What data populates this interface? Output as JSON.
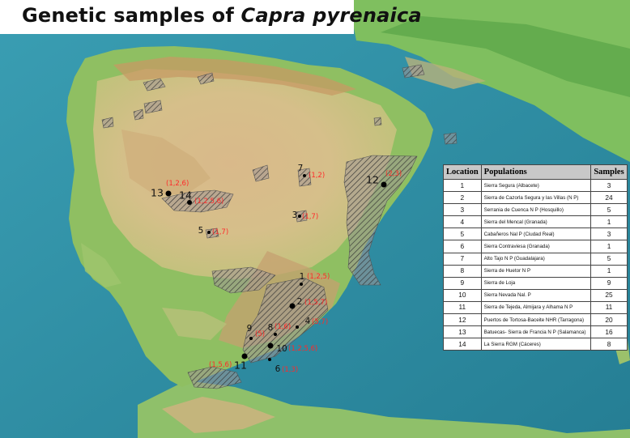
{
  "title": {
    "text": "Genetic samples of ",
    "species": "Capra pyrenaica"
  },
  "colors": {
    "sea": "#2f8fa3",
    "label_red": "#ff2a2a",
    "table_header": "#c8c8c8",
    "hatch": "#3a3a3a"
  },
  "locations": [
    {
      "num": "1",
      "pops": "(1,2,5)"
    },
    {
      "num": "2",
      "pops": "(1,5,7)"
    },
    {
      "num": "3",
      "pops": "(1,7)"
    },
    {
      "num": "4",
      "pops": "(5,7)"
    },
    {
      "num": "5",
      "pops": "(1,7)"
    },
    {
      "num": "6",
      "pops": "(1,3)"
    },
    {
      "num": "7",
      "pops": "(1,2)"
    },
    {
      "num": "8",
      "pops": "(1,6)"
    },
    {
      "num": "9",
      "pops": "(5)"
    },
    {
      "num": "10",
      "pops": "(1,2,5,6)"
    },
    {
      "num": "11",
      "pops": "(1,5,6)"
    },
    {
      "num": "12",
      "pops": "(2,3)"
    },
    {
      "num": "13",
      "pops": "(1,2,6)"
    },
    {
      "num": "14",
      "pops": "(1,2,5,6)"
    }
  ],
  "table": {
    "headers": [
      "Location",
      "Populations",
      "Samples"
    ],
    "rows": [
      [
        "1",
        "Sierra Segura (Albacete)",
        "3"
      ],
      [
        "2",
        "Sierra de Cazorla Segura y las Villas (N P)",
        "24"
      ],
      [
        "3",
        "Serrania de Cuenca N P (Hosquillo)",
        "5"
      ],
      [
        "4",
        "Sierra del Mencal (Granada)",
        "1"
      ],
      [
        "5",
        "Cabañeros Nal P (Ciudad Real)",
        "3"
      ],
      [
        "6",
        "Sierra Contraviesa (Granada)",
        "1"
      ],
      [
        "7",
        "Alto Tajo N P (Guadalajara)",
        "5"
      ],
      [
        "8",
        "Sierra de Huetor N P",
        "1"
      ],
      [
        "9",
        "Sierra de Loja",
        "9"
      ],
      [
        "10",
        "Sierra Nevada Nal. P",
        "25"
      ],
      [
        "11",
        "Sierra de Tejeda, Almijara y Alhama N P",
        "11"
      ],
      [
        "12",
        "Puertos de Tortosa-Baceite NHR (Tarragona)",
        "20"
      ],
      [
        "13",
        "Batuecas- Sierra de Francia N P (Salamanca)",
        "16"
      ],
      [
        "14",
        "La Sierra RGM (Cáceres)",
        "8"
      ]
    ]
  }
}
